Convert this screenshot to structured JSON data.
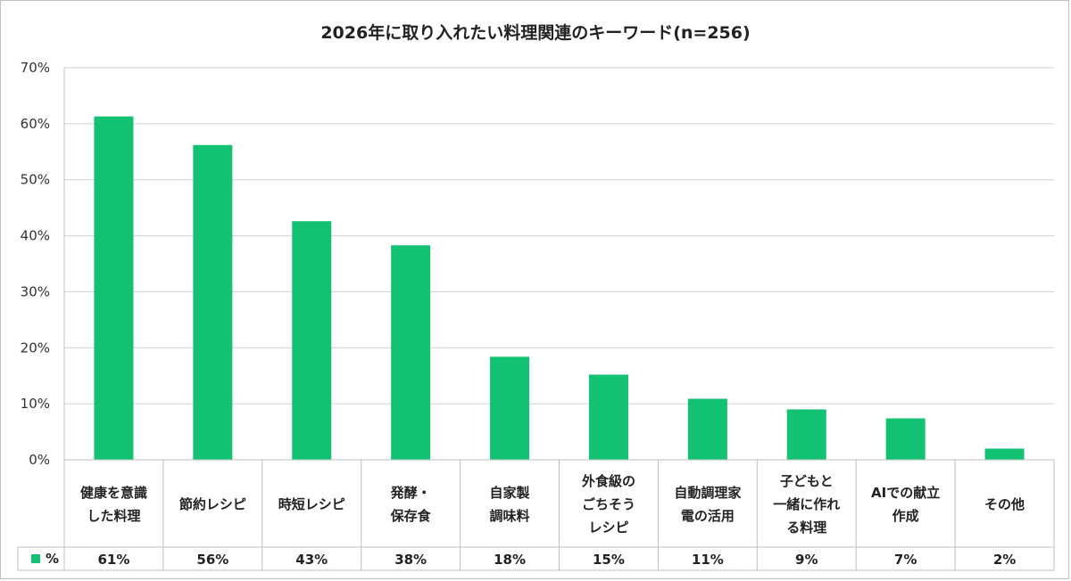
{
  "chart_data": {
    "type": "bar",
    "title": "2026年に取り入れたい料理関連のキーワード(n=256)",
    "ylim": [
      0,
      70
    ],
    "yticks": [
      "0%",
      "10%",
      "20%",
      "30%",
      "40%",
      "50%",
      "60%",
      "70%"
    ],
    "grid": true,
    "series": [
      {
        "name": "%",
        "color": "#12c172",
        "values": [
          61.3,
          56.2,
          42.6,
          38.3,
          18.4,
          15.2,
          10.9,
          9.0,
          7.4,
          2.0
        ]
      }
    ],
    "categories": [
      [
        "健康を意識",
        "した料理"
      ],
      [
        "節約レシピ"
      ],
      [
        "時短レシピ"
      ],
      [
        "発酵・",
        "保存食"
      ],
      [
        "自家製",
        "調味料"
      ],
      [
        "外食級の",
        "ごちそう",
        "レシピ"
      ],
      [
        "自動調理家",
        "電の活用"
      ],
      [
        "子どもと",
        "一緒に作れ",
        "る料理"
      ],
      [
        "AIでの献立",
        "作成"
      ],
      [
        "その他"
      ]
    ],
    "table_values": [
      "61%",
      "56%",
      "43%",
      "38%",
      "18%",
      "15%",
      "11%",
      "9%",
      "7%",
      "2%"
    ]
  }
}
